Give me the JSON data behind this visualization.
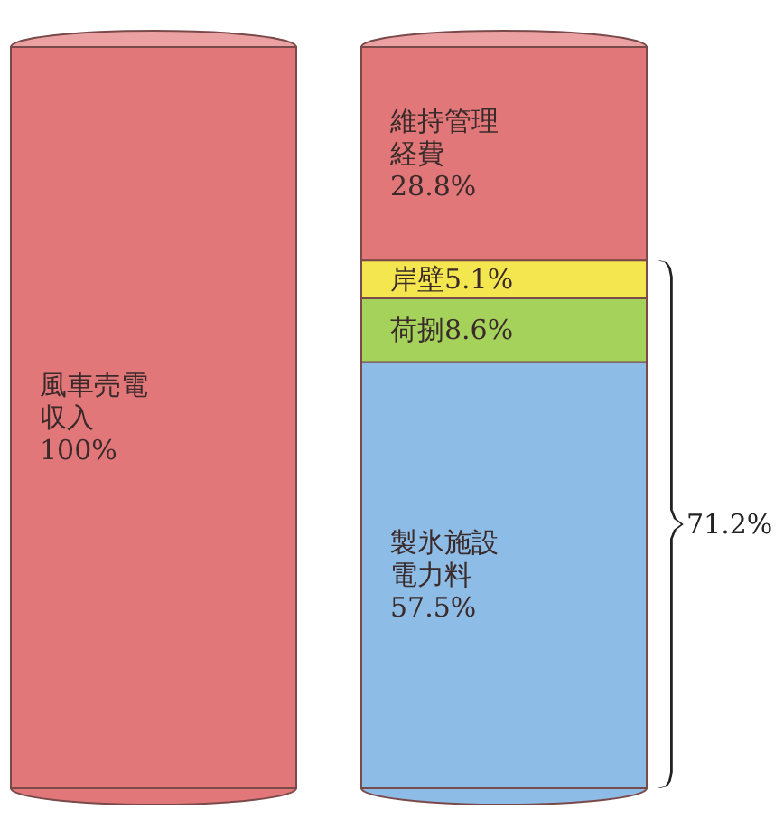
{
  "chart_data": {
    "type": "bar",
    "stacked": true,
    "categories": [
      null,
      null
    ],
    "annotations": [
      "71.2%"
    ],
    "series": [
      {
        "name": "風車売電収入",
        "color": "#e2777a",
        "values": [
          100,
          null
        ],
        "value_labels": [
          "100%",
          null
        ]
      },
      {
        "name": "製氷施設電力料",
        "color": "#8dbce6",
        "values": [
          null,
          57.5
        ],
        "value_labels": [
          null,
          "57.5%"
        ]
      },
      {
        "name": "荷捌",
        "color": "#a5d25a",
        "values": [
          null,
          8.6
        ],
        "value_labels": [
          null,
          "8.6%"
        ]
      },
      {
        "name": "岸壁",
        "color": "#f4e64e",
        "values": [
          null,
          5.1
        ],
        "value_labels": [
          null,
          "5.1%"
        ]
      },
      {
        "name": "維持管理経費",
        "color": "#e2777a",
        "values": [
          null,
          28.8
        ],
        "value_labels": [
          null,
          "28.8%"
        ]
      }
    ]
  }
}
